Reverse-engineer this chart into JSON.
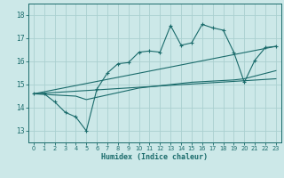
{
  "xlabel": "Humidex (Indice chaleur)",
  "bg_color": "#cce8e8",
  "grid_color": "#aad0d0",
  "line_color": "#1a6b6b",
  "xlim": [
    -0.5,
    23.5
  ],
  "ylim": [
    12.5,
    18.5
  ],
  "yticks": [
    13,
    14,
    15,
    16,
    17,
    18
  ],
  "xticks": [
    0,
    1,
    2,
    3,
    4,
    5,
    6,
    7,
    8,
    9,
    10,
    11,
    12,
    13,
    14,
    15,
    16,
    17,
    18,
    19,
    20,
    21,
    22,
    23
  ],
  "main_x": [
    0,
    1,
    2,
    3,
    4,
    5,
    6,
    7,
    8,
    9,
    10,
    11,
    12,
    13,
    14,
    15,
    16,
    17,
    18,
    19,
    20,
    21,
    22,
    23
  ],
  "main_y": [
    14.6,
    14.6,
    14.25,
    13.8,
    13.6,
    13.0,
    14.8,
    15.5,
    15.9,
    15.95,
    16.4,
    16.45,
    16.4,
    17.55,
    16.7,
    16.8,
    17.6,
    17.45,
    17.35,
    16.4,
    15.1,
    16.05,
    16.6,
    16.65
  ],
  "trend1_x": [
    0,
    23
  ],
  "trend1_y": [
    14.6,
    16.65
  ],
  "trend2_x": [
    0,
    23
  ],
  "trend2_y": [
    14.6,
    15.25
  ],
  "trend3_x": [
    0,
    4,
    5,
    10,
    15,
    19,
    20,
    23
  ],
  "trend3_y": [
    14.6,
    14.5,
    14.35,
    14.85,
    15.1,
    15.2,
    15.25,
    15.6
  ]
}
